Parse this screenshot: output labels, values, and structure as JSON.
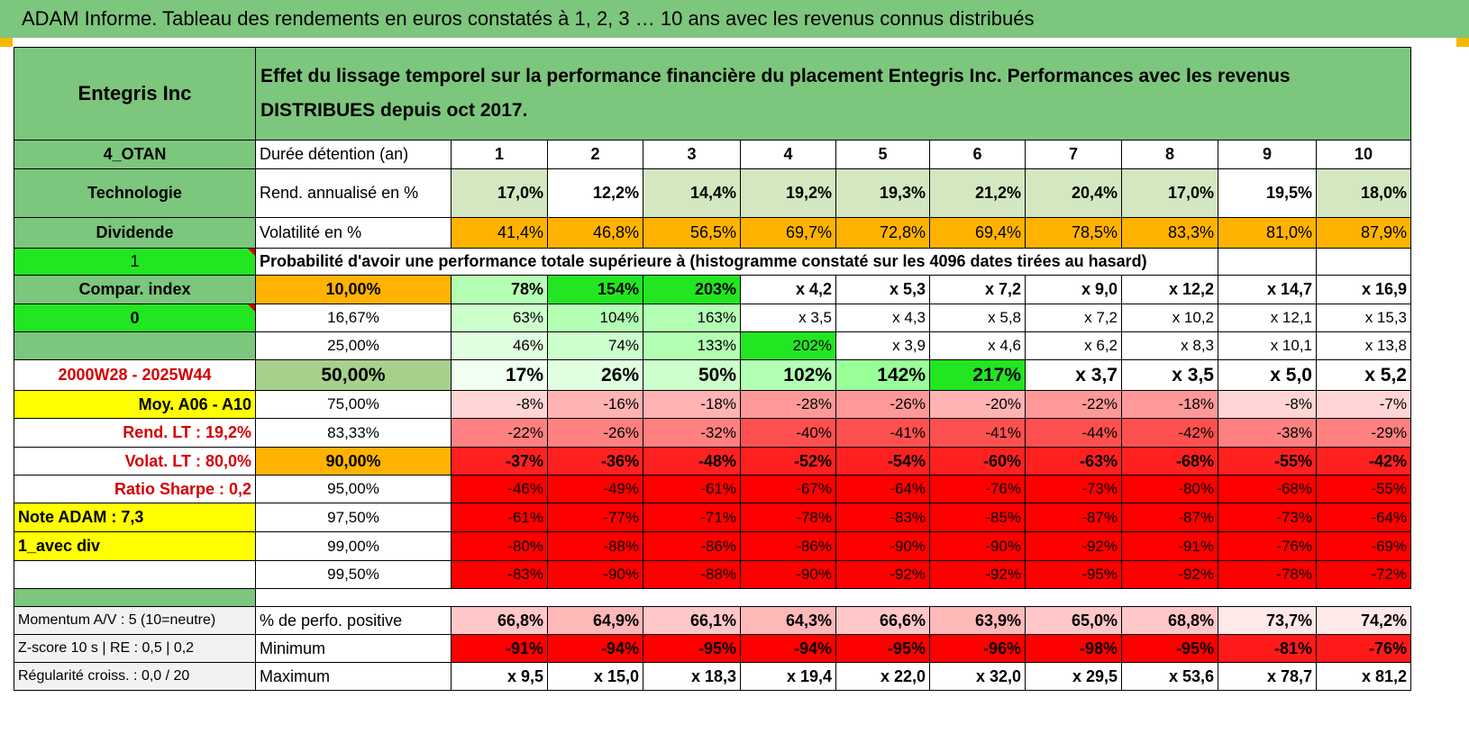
{
  "title": "ADAM Informe. Tableau des rendements en euros constatés à 1, 2, 3 … 10 ans avec les revenus connus distribués",
  "header": {
    "name": "Entegris Inc",
    "description": "Effet du lissage temporel sur la performance financière du placement Entegris Inc. Performances avec les revenus DISTRIBUES depuis oct 2017."
  },
  "left_labels": {
    "code": "4_OTAN",
    "sector": "Technologie",
    "type": "Dividende",
    "flag1": "1",
    "compar_index": "Compar. index",
    "flag2": "0",
    "blank": "",
    "period": "2000W28 - 2025W44",
    "moy": "Moy. A06 - A10",
    "rend_lt": "Rend. LT :    19,2%",
    "volat_lt": "Volat. LT :    80,0%",
    "sharpe": "Ratio Sharpe :     0,2",
    "note": "Note ADAM : 7,3",
    "avec_div": "1_avec div",
    "momentum": "Momentum A/V : 5 (10=neutre)",
    "zscore": "Z-score 10 s | RE : 0,5 | 0,2",
    "regularite": "Régularité croiss. : 0,0 / 20"
  },
  "durations": {
    "label": "Durée détention (an)",
    "values": [
      "1",
      "2",
      "3",
      "4",
      "5",
      "6",
      "7",
      "8",
      "9",
      "10"
    ]
  },
  "rend": {
    "label": "Rend. annualisé en %",
    "values": [
      "17,0%",
      "12,2%",
      "14,4%",
      "19,2%",
      "19,3%",
      "21,2%",
      "20,4%",
      "17,0%",
      "19,5%",
      "18,0%"
    ]
  },
  "vol": {
    "label": "Volatilité en %",
    "values": [
      "41,4%",
      "46,8%",
      "56,5%",
      "69,7%",
      "72,8%",
      "69,4%",
      "78,5%",
      "83,3%",
      "81,0%",
      "87,9%"
    ]
  },
  "prob_header": "Probabilité d'avoir une performance totale supérieure à (histogramme constaté sur les 4096 dates tirées au hasard)",
  "prob_rows": [
    {
      "pct": "10,00%",
      "values": [
        "78%",
        "154%",
        "203%",
        "x 4,2",
        "x 5,3",
        "x 7,2",
        "x 9,0",
        "x 12,2",
        "x 14,7",
        "x 16,9"
      ]
    },
    {
      "pct": "16,67%",
      "values": [
        "63%",
        "104%",
        "163%",
        "x 3,5",
        "x 4,3",
        "x 5,8",
        "x 7,2",
        "x 10,2",
        "x 12,1",
        "x 15,3"
      ]
    },
    {
      "pct": "25,00%",
      "values": [
        "46%",
        "74%",
        "133%",
        "202%",
        "x 3,9",
        "x 4,6",
        "x 6,2",
        "x 8,3",
        "x 10,1",
        "x 13,8"
      ]
    },
    {
      "pct": "50,00%",
      "values": [
        "17%",
        "26%",
        "50%",
        "102%",
        "142%",
        "217%",
        "x 3,7",
        "x 3,5",
        "x 5,0",
        "x 5,2"
      ]
    },
    {
      "pct": "75,00%",
      "values": [
        "-8%",
        "-16%",
        "-18%",
        "-28%",
        "-26%",
        "-20%",
        "-22%",
        "-18%",
        "-8%",
        "-7%"
      ]
    },
    {
      "pct": "83,33%",
      "values": [
        "-22%",
        "-26%",
        "-32%",
        "-40%",
        "-41%",
        "-41%",
        "-44%",
        "-42%",
        "-38%",
        "-29%"
      ]
    },
    {
      "pct": "90,00%",
      "values": [
        "-37%",
        "-36%",
        "-48%",
        "-52%",
        "-54%",
        "-60%",
        "-63%",
        "-68%",
        "-55%",
        "-42%"
      ]
    },
    {
      "pct": "95,00%",
      "values": [
        "-46%",
        "-49%",
        "-61%",
        "-67%",
        "-64%",
        "-76%",
        "-73%",
        "-80%",
        "-68%",
        "-55%"
      ]
    },
    {
      "pct": "97,50%",
      "values": [
        "-61%",
        "-77%",
        "-71%",
        "-78%",
        "-83%",
        "-85%",
        "-87%",
        "-87%",
        "-73%",
        "-64%"
      ]
    },
    {
      "pct": "99,00%",
      "values": [
        "-80%",
        "-88%",
        "-86%",
        "-86%",
        "-90%",
        "-90%",
        "-92%",
        "-91%",
        "-76%",
        "-69%"
      ]
    },
    {
      "pct": "99,50%",
      "values": [
        "-83%",
        "-90%",
        "-88%",
        "-90%",
        "-92%",
        "-92%",
        "-95%",
        "-92%",
        "-78%",
        "-72%"
      ]
    }
  ],
  "stats": [
    {
      "label": "% de perfo. positive",
      "values": [
        "66,8%",
        "64,9%",
        "66,1%",
        "64,3%",
        "66,6%",
        "63,9%",
        "65,0%",
        "68,8%",
        "73,7%",
        "74,2%"
      ]
    },
    {
      "label": "Minimum",
      "values": [
        "-91%",
        "-94%",
        "-95%",
        "-94%",
        "-95%",
        "-96%",
        "-98%",
        "-95%",
        "-81%",
        "-76%"
      ]
    },
    {
      "label": "Maximum",
      "values": [
        "x 9,5",
        "x 15,0",
        "x 18,3",
        "x 19,4",
        "x 22,0",
        "x 32,0",
        "x 29,5",
        "x 53,6",
        "x 78,7",
        "x 81,2"
      ]
    }
  ],
  "colors": {
    "header_green": "#7dc67d",
    "bright_green": "#22e622",
    "yellow": "#ffff00",
    "orange": "#ffb300",
    "red": "#ff0000"
  }
}
